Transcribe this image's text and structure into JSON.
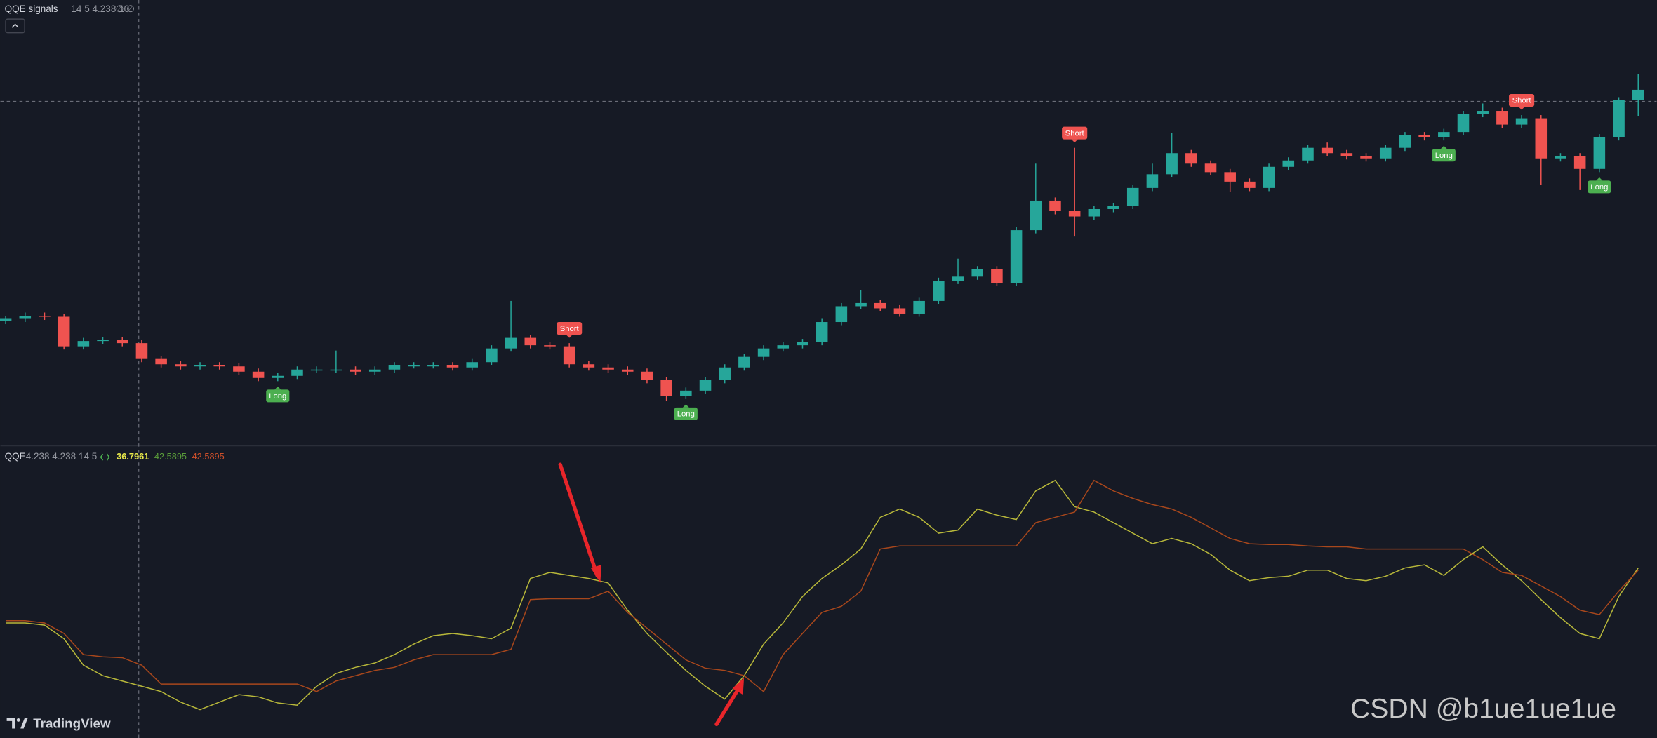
{
  "header": {
    "indicator": "QQE signals",
    "params": "14 5 4.238 10",
    "extra": "∅ ∅"
  },
  "chart_data": [
    {
      "type": "candlestick",
      "open": [
        116,
        118,
        121,
        120,
        92,
        97,
        98,
        95,
        80,
        75,
        73,
        74,
        73,
        68,
        62,
        64,
        70,
        70,
        70,
        68,
        70,
        74,
        74,
        74,
        72,
        77,
        90,
        100,
        93,
        92,
        75,
        72,
        70,
        68,
        60,
        45,
        50,
        60,
        72,
        82,
        90,
        93,
        96,
        115,
        130,
        133,
        128,
        123,
        135,
        154,
        158,
        165,
        152,
        202,
        230,
        220,
        215,
        222,
        225,
        242,
        255,
        275,
        265,
        257,
        248,
        242,
        262,
        268,
        280,
        275,
        272,
        270,
        280,
        292,
        290,
        295,
        312,
        315,
        302,
        308,
        270,
        272,
        260,
        290,
        325
      ],
      "high": [
        121,
        124,
        124,
        123,
        100,
        101,
        101,
        98,
        83,
        78,
        77,
        77,
        76,
        71,
        67,
        73,
        73,
        88,
        73,
        73,
        77,
        77,
        77,
        77,
        80,
        93,
        135,
        103,
        96,
        95,
        78,
        75,
        73,
        71,
        63,
        53,
        63,
        75,
        85,
        93,
        96,
        99,
        118,
        133,
        145,
        136,
        131,
        138,
        157,
        175,
        168,
        168,
        205,
        265,
        233,
        280,
        225,
        228,
        245,
        265,
        294,
        278,
        268,
        260,
        251,
        265,
        271,
        283,
        285,
        278,
        275,
        283,
        295,
        295,
        298,
        315,
        322,
        318,
        311,
        311,
        275,
        275,
        293,
        328,
        350
      ],
      "low": [
        113,
        115,
        117,
        89,
        89,
        94,
        92,
        77,
        72,
        70,
        70,
        70,
        65,
        59,
        59,
        61,
        67,
        67,
        65,
        65,
        67,
        71,
        71,
        69,
        69,
        74,
        87,
        90,
        89,
        72,
        69,
        67,
        65,
        57,
        40,
        42,
        47,
        57,
        69,
        79,
        87,
        90,
        93,
        112,
        127,
        125,
        120,
        120,
        132,
        151,
        155,
        149,
        149,
        199,
        217,
        196,
        212,
        219,
        222,
        239,
        252,
        262,
        254,
        238,
        239,
        239,
        259,
        265,
        272,
        269,
        267,
        267,
        277,
        287,
        287,
        292,
        309,
        299,
        299,
        245,
        267,
        240,
        257,
        287,
        310
      ],
      "close": [
        118,
        121,
        120,
        92,
        97,
        98,
        95,
        80,
        75,
        73,
        74,
        73,
        68,
        62,
        64,
        70,
        70,
        70,
        68,
        70,
        74,
        74,
        74,
        72,
        77,
        90,
        100,
        93,
        92,
        75,
        72,
        70,
        68,
        60,
        45,
        50,
        60,
        72,
        82,
        90,
        93,
        96,
        115,
        130,
        133,
        128,
        123,
        135,
        154,
        158,
        165,
        152,
        202,
        230,
        220,
        215,
        222,
        225,
        242,
        255,
        275,
        265,
        257,
        248,
        242,
        262,
        268,
        280,
        275,
        272,
        270,
        280,
        292,
        290,
        295,
        312,
        315,
        302,
        308,
        270,
        272,
        260,
        290,
        325,
        335
      ],
      "ylim": [
        0,
        420
      ],
      "up_color": "#26a69a",
      "down_color": "#ef5350",
      "signals": [
        {
          "label": "Long",
          "index": 14,
          "color": "#4caf50"
        },
        {
          "label": "Short",
          "index": 29,
          "color": "#ef5350"
        },
        {
          "label": "Long",
          "index": 35,
          "color": "#4caf50"
        },
        {
          "label": "Short",
          "index": 55,
          "color": "#ef5350"
        },
        {
          "label": "Long",
          "index": 74,
          "color": "#4caf50"
        },
        {
          "label": "Short",
          "index": 78,
          "color": "#ef5350"
        },
        {
          "label": "Long",
          "index": 82,
          "color": "#4caf50"
        }
      ]
    },
    {
      "type": "line",
      "title": "QQE",
      "params": "4.238 4.238 14 5",
      "readout": [
        {
          "text": "36.7961",
          "color": "#e8e84a"
        },
        {
          "text": "42.5895",
          "color": "#5a9e3a"
        },
        {
          "text": "42.5895",
          "color": "#d0502a"
        }
      ],
      "ylim": [
        20,
        80
      ],
      "series": [
        {
          "color": "#b8b83a",
          "values": [
            44,
            44,
            43.5,
            40.4,
            34.4,
            32,
            30.8,
            29.6,
            28.4,
            26,
            24.3,
            26,
            27.7,
            27.2,
            25.8,
            25.3,
            29.6,
            32.5,
            33.9,
            34.9,
            36.8,
            39.2,
            41.1,
            41.6,
            41.1,
            40.4,
            42.8,
            54.1,
            55.5,
            54.8,
            54.1,
            53.1,
            46.9,
            41.6,
            37.3,
            33.2,
            29.6,
            26.7,
            32,
            39.2,
            44,
            50,
            54.1,
            57.2,
            60.8,
            68,
            69.9,
            68,
            64.4,
            65.1,
            69.9,
            68.5,
            67.5,
            74,
            76.4,
            70.4,
            69.2,
            66.8,
            64.4,
            62,
            63.2,
            62,
            59.6,
            56,
            53.6,
            54.3,
            54.6,
            56,
            56,
            54.1,
            53.6,
            54.6,
            56.5,
            57.2,
            54.8,
            58.4,
            61.3,
            57.2,
            53.6,
            49.3,
            45.2,
            41.6,
            40.4,
            50,
            56.5
          ]
        },
        {
          "color": "#a8471c",
          "values": [
            44.5,
            44.5,
            44,
            41.6,
            36.8,
            36.3,
            36.1,
            34.4,
            30.1,
            30.1,
            30.1,
            30.1,
            30.1,
            30.1,
            30.1,
            30.1,
            28.4,
            30.8,
            32,
            33.2,
            33.9,
            35.6,
            36.8,
            36.8,
            36.8,
            36.8,
            38,
            49.3,
            49.5,
            49.5,
            49.5,
            51.2,
            46.4,
            42.8,
            39.2,
            35.6,
            33.7,
            33.2,
            32,
            28.4,
            36.8,
            41.6,
            46.4,
            47.8,
            51.2,
            60.8,
            61.5,
            61.5,
            61.5,
            61.5,
            61.5,
            61.5,
            61.5,
            66.8,
            68,
            69.2,
            76.4,
            74,
            72.3,
            70.9,
            69.9,
            68,
            65.6,
            63.2,
            62,
            61.8,
            61.8,
            61.5,
            61.3,
            61.3,
            60.8,
            60.8,
            60.8,
            60.8,
            60.8,
            60.8,
            58.4,
            55.5,
            54.8,
            52.4,
            50,
            46.9,
            45.9,
            51.2,
            56
          ]
        }
      ]
    }
  ],
  "footer": {
    "brand": "TradingView",
    "watermark": "CSDN @b1ue1ue1ue"
  }
}
